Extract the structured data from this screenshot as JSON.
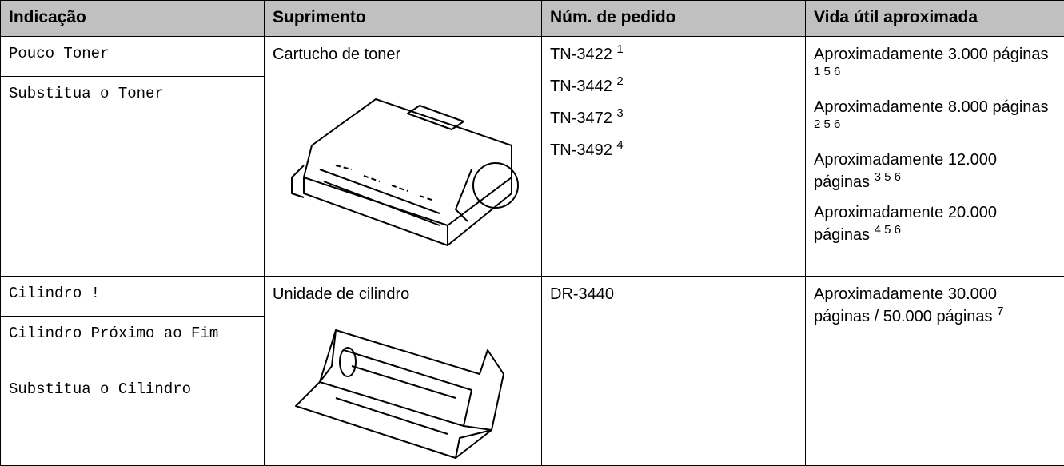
{
  "table": {
    "header": [
      "Indicação",
      "Suprimento",
      "Núm. de pedido",
      "Vida útil aproximada"
    ],
    "rows": [
      {
        "indications": [
          "Pouco Toner",
          "Substitua o Toner"
        ],
        "supply": "Cartucho de toner",
        "orders": [
          {
            "code": "TN-3422",
            "note": "1"
          },
          {
            "code": "TN-3442",
            "note": "2"
          },
          {
            "code": "TN-3472",
            "note": "3"
          },
          {
            "code": "TN-3492",
            "note": "4"
          }
        ],
        "life": [
          {
            "text": "Aproximadamente 3.000 páginas",
            "notes": "1 5 6"
          },
          {
            "text": "Aproximadamente 8.000 páginas",
            "notes": "2 5 6"
          },
          {
            "text": "Aproximadamente 12.000 páginas",
            "notes": "3 5 6"
          },
          {
            "text": "Aproximadamente 20.000 páginas",
            "notes": "4 5 6"
          }
        ]
      },
      {
        "indications": [
          "Cilindro !",
          "Cilindro Próximo ao Fim",
          "Substitua o Cilindro"
        ],
        "supply": "Unidade de cilindro",
        "orders": [
          {
            "code": "DR-3440"
          }
        ],
        "life": [
          {
            "text": "Aproximadamente 30.000 páginas / 50.000 páginas",
            "notes": "7"
          }
        ]
      }
    ]
  }
}
